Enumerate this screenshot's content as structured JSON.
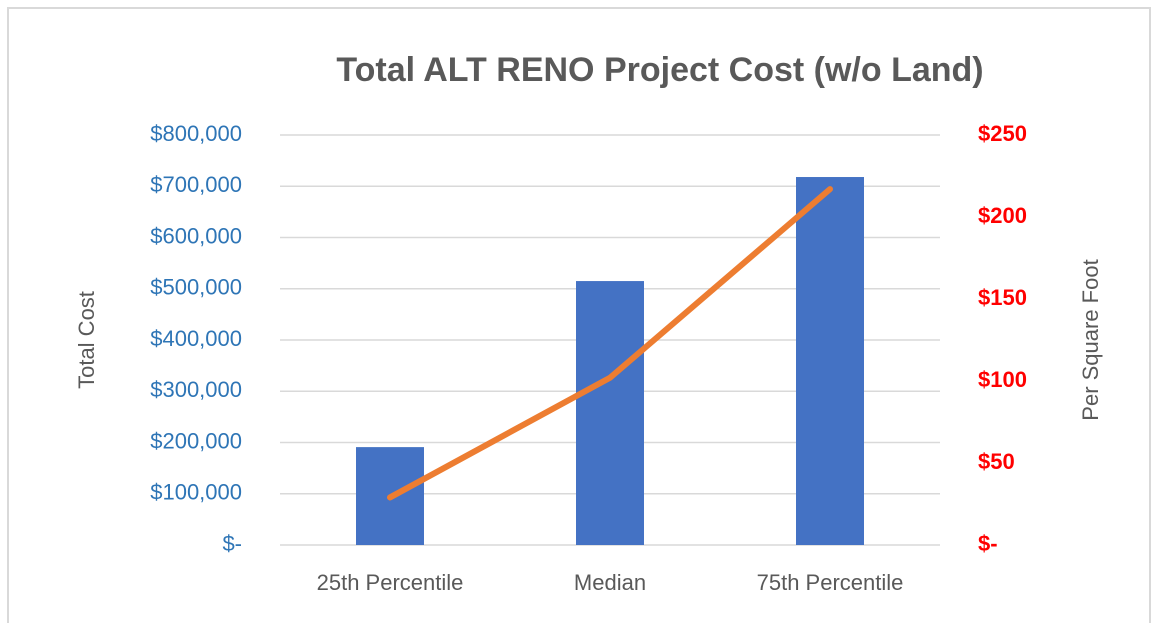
{
  "chart_data": {
    "type": "bar-line",
    "title": "Total ALT RENO Project Cost (w/o Land)",
    "categories": [
      "25th Percentile",
      "Median",
      "75th Percentile"
    ],
    "y_label": "Total Cost",
    "y2_label": "Per Square Foot",
    "series": [
      {
        "type": "bar",
        "color": "#4472c4",
        "values": [
          191000,
          515000,
          718000
        ]
      },
      {
        "type": "line",
        "axis": "y2",
        "color": "#ed7d31",
        "values": [
          29,
          102,
          217
        ]
      }
    ],
    "ylim": [
      0,
      800000
    ],
    "yticks": [
      {
        "value": 0,
        "label": "$-"
      },
      {
        "value": 100000,
        "label": "$100,000"
      },
      {
        "value": 200000,
        "label": "$200,000"
      },
      {
        "value": 300000,
        "label": "$300,000"
      },
      {
        "value": 400000,
        "label": "$400,000"
      },
      {
        "value": 500000,
        "label": "$500,000"
      },
      {
        "value": 600000,
        "label": "$600,000"
      },
      {
        "value": 700000,
        "label": "$700,000"
      },
      {
        "value": 800000,
        "label": "$800,000"
      }
    ],
    "y2lim": [
      0,
      250
    ],
    "y2ticks": [
      {
        "value": 0,
        "label": "$-"
      },
      {
        "value": 50,
        "label": "$50"
      },
      {
        "value": 100,
        "label": "$100"
      },
      {
        "value": 150,
        "label": "$150"
      },
      {
        "value": 200,
        "label": "$200"
      },
      {
        "value": 250,
        "label": "$250"
      }
    ],
    "grid": true
  }
}
